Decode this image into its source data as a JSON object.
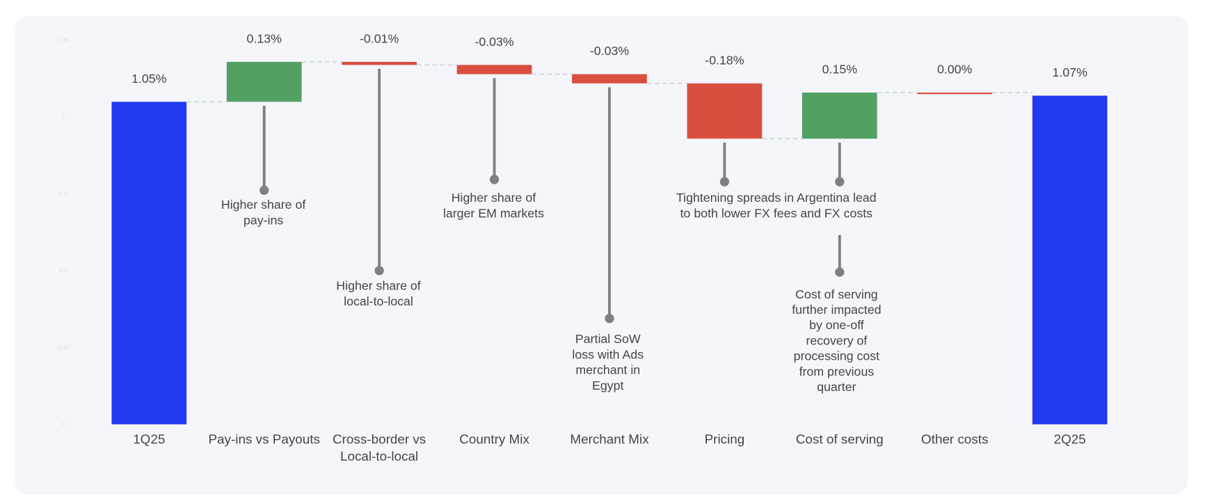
{
  "chart_data": {
    "type": "waterfall",
    "categories": [
      "1Q25",
      "Pay-ins vs Payouts",
      "Cross-border vs Local-to-local",
      "Country Mix",
      "Merchant Mix",
      "Pricing",
      "Cost of serving",
      "Other costs",
      "2Q25"
    ],
    "values": [
      1.05,
      0.13,
      -0.01,
      -0.03,
      -0.03,
      -0.18,
      0.15,
      0.0,
      1.07
    ],
    "value_labels": [
      "1.05%",
      "0.13%",
      "-0.01%",
      "-0.03%",
      "-0.03%",
      "-0.18%",
      "0.15%",
      "0.00%",
      "1.07%"
    ],
    "measure": [
      "total",
      "relative",
      "relative",
      "relative",
      "relative",
      "relative",
      "relative",
      "relative",
      "total"
    ],
    "total_color": "#2339f0",
    "increase_color": "#52a062",
    "decrease_color": "#d94f3f",
    "ylim": [
      0,
      1.25
    ],
    "yticks": [
      0,
      0.25,
      0.5,
      0.75,
      1,
      1.25
    ],
    "annotations": [
      "Higher share of pay-ins",
      "Higher share of local-to-local",
      "Higher share of larger EM markets",
      "Partial SoW loss with Ads merchant in Egypt",
      "Tightening spreads in Argentina lead to both lower FX fees and FX costs",
      "Cost of serving further impacted by one-off recovery of processing cost from previous quarter"
    ]
  }
}
